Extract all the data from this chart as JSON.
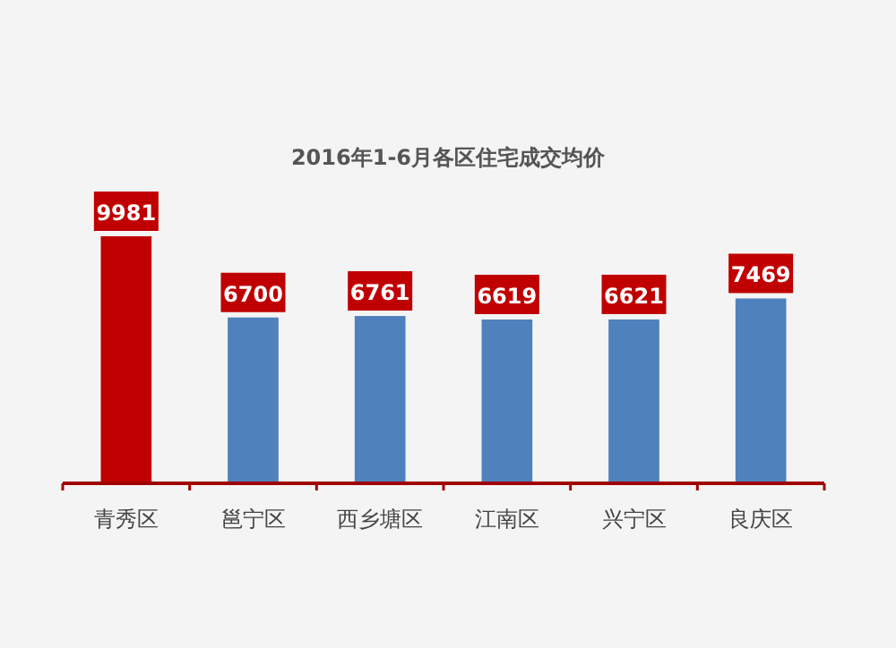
{
  "chart_data": {
    "type": "bar",
    "title": "2016年1-6月各区住宅成交均价",
    "categories": [
      "青秀区",
      "邕宁区",
      "西乡塘区",
      "江南区",
      "兴宁区",
      "良庆区"
    ],
    "values": [
      9981,
      6700,
      6761,
      6619,
      6621,
      7469
    ],
    "colors": [
      "#c00000",
      "#4f81bd",
      "#4f81bd",
      "#4f81bd",
      "#4f81bd",
      "#4f81bd"
    ],
    "data_labels": true,
    "grid": false
  }
}
